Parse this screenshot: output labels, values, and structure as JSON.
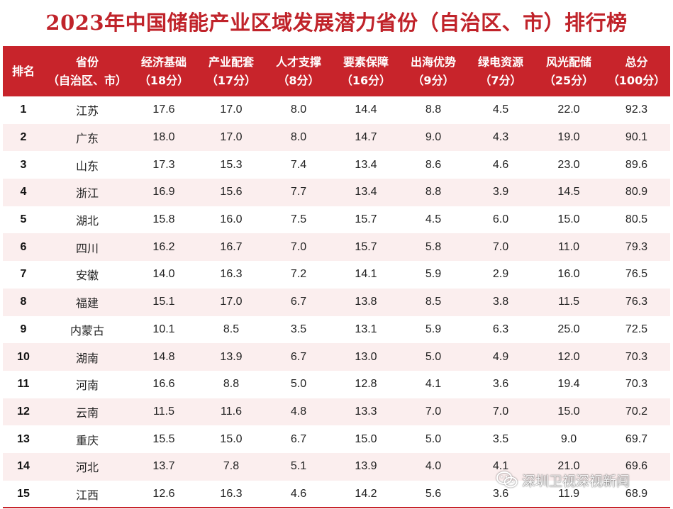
{
  "title": "2023年中国储能产业区域发展潜力省份（自治区、市）排行榜",
  "headers": [
    {
      "line1": "排名",
      "line2": ""
    },
    {
      "line1": "省份",
      "line2": "（自治区、市）"
    },
    {
      "line1": "经济基础",
      "line2": "（18分）"
    },
    {
      "line1": "产业配套",
      "line2": "（17分）"
    },
    {
      "line1": "人才支撑",
      "line2": "（8分）"
    },
    {
      "line1": "要素保障",
      "line2": "（16分）"
    },
    {
      "line1": "出海优势",
      "line2": "（9分）"
    },
    {
      "line1": "绿电资源",
      "line2": "（7分）"
    },
    {
      "line1": "风光配储",
      "line2": "（25分）"
    },
    {
      "line1": "总分",
      "line2": "（100分）"
    }
  ],
  "rows": [
    [
      "1",
      "江苏",
      "17.6",
      "17.0",
      "8.0",
      "14.4",
      "8.8",
      "4.5",
      "22.0",
      "92.3"
    ],
    [
      "2",
      "广东",
      "18.0",
      "17.0",
      "8.0",
      "14.7",
      "9.0",
      "4.3",
      "19.0",
      "90.1"
    ],
    [
      "3",
      "山东",
      "17.3",
      "15.3",
      "7.4",
      "13.4",
      "8.6",
      "4.6",
      "23.0",
      "89.6"
    ],
    [
      "4",
      "浙江",
      "16.9",
      "15.6",
      "7.7",
      "13.4",
      "8.8",
      "3.9",
      "14.5",
      "80.9"
    ],
    [
      "5",
      "湖北",
      "15.8",
      "16.0",
      "7.5",
      "15.7",
      "4.5",
      "6.0",
      "15.0",
      "80.5"
    ],
    [
      "6",
      "四川",
      "16.2",
      "16.7",
      "7.0",
      "15.7",
      "5.8",
      "7.0",
      "11.0",
      "79.3"
    ],
    [
      "7",
      "安徽",
      "14.0",
      "16.3",
      "7.2",
      "14.1",
      "5.9",
      "2.9",
      "16.0",
      "76.5"
    ],
    [
      "8",
      "福建",
      "15.1",
      "17.0",
      "6.7",
      "13.8",
      "8.5",
      "3.8",
      "11.5",
      "76.3"
    ],
    [
      "9",
      "内蒙古",
      "10.1",
      "8.5",
      "3.5",
      "13.1",
      "5.9",
      "6.3",
      "25.0",
      "72.5"
    ],
    [
      "10",
      "湖南",
      "14.8",
      "13.9",
      "6.7",
      "13.0",
      "5.0",
      "4.9",
      "12.0",
      "70.3"
    ],
    [
      "11",
      "河南",
      "16.6",
      "8.8",
      "5.0",
      "12.8",
      "4.1",
      "3.6",
      "19.4",
      "70.3"
    ],
    [
      "12",
      "云南",
      "11.5",
      "11.6",
      "4.8",
      "13.3",
      "7.0",
      "7.0",
      "15.0",
      "70.2"
    ],
    [
      "13",
      "重庆",
      "15.5",
      "15.0",
      "6.7",
      "15.0",
      "5.0",
      "3.5",
      "9.0",
      "69.7"
    ],
    [
      "14",
      "河北",
      "13.7",
      "7.8",
      "5.1",
      "13.9",
      "4.0",
      "4.1",
      "21.0",
      "69.6"
    ],
    [
      "15",
      "江西",
      "12.6",
      "16.3",
      "4.6",
      "14.2",
      "5.6",
      "3.6",
      "11.9",
      "68.9"
    ]
  ],
  "watermark": {
    "text": "深圳卫视深视新闻",
    "icon": "wechat-icon"
  },
  "colors": {
    "accent": "#c8242b",
    "title": "#c0232a",
    "stripe": "#fbeeee"
  }
}
